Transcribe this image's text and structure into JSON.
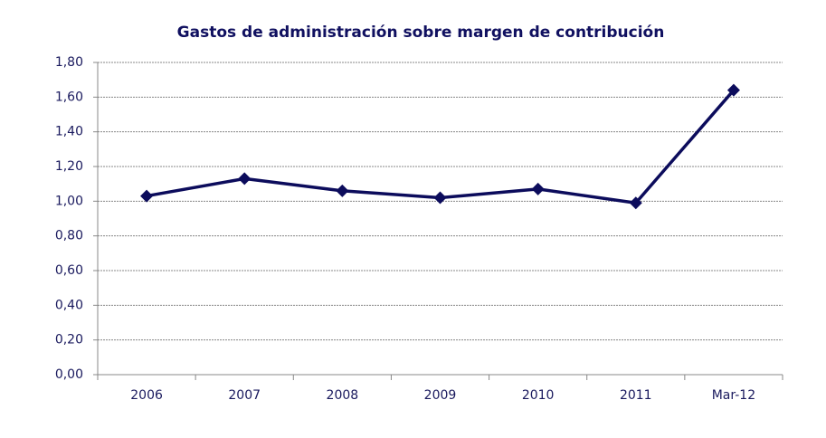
{
  "chart_data": {
    "type": "line",
    "title": "Gastos de administración sobre margen de contribución",
    "categories": [
      "2006",
      "2007",
      "2008",
      "2009",
      "2010",
      "2011",
      "Mar-12"
    ],
    "series": [
      {
        "name": "Gastos de administración sobre margen de contribución",
        "color": "#0c0c5c",
        "values": [
          1.03,
          1.13,
          1.06,
          1.02,
          1.07,
          0.99,
          1.64
        ]
      }
    ],
    "ylim": [
      0,
      1.8
    ],
    "yticks": [
      {
        "value": 0,
        "label": "0,00"
      },
      {
        "value": 0.2,
        "label": "0,20"
      },
      {
        "value": 0.4,
        "label": "0,40"
      },
      {
        "value": 0.6,
        "label": "0,60"
      },
      {
        "value": 0.8,
        "label": "0,80"
      },
      {
        "value": 1.0,
        "label": "1,00"
      },
      {
        "value": 1.2,
        "label": "1,20"
      },
      {
        "value": 1.4,
        "label": "1,40"
      },
      {
        "value": 1.6,
        "label": "1,60"
      },
      {
        "value": 1.8,
        "label": "1,80"
      }
    ],
    "grid": true
  }
}
